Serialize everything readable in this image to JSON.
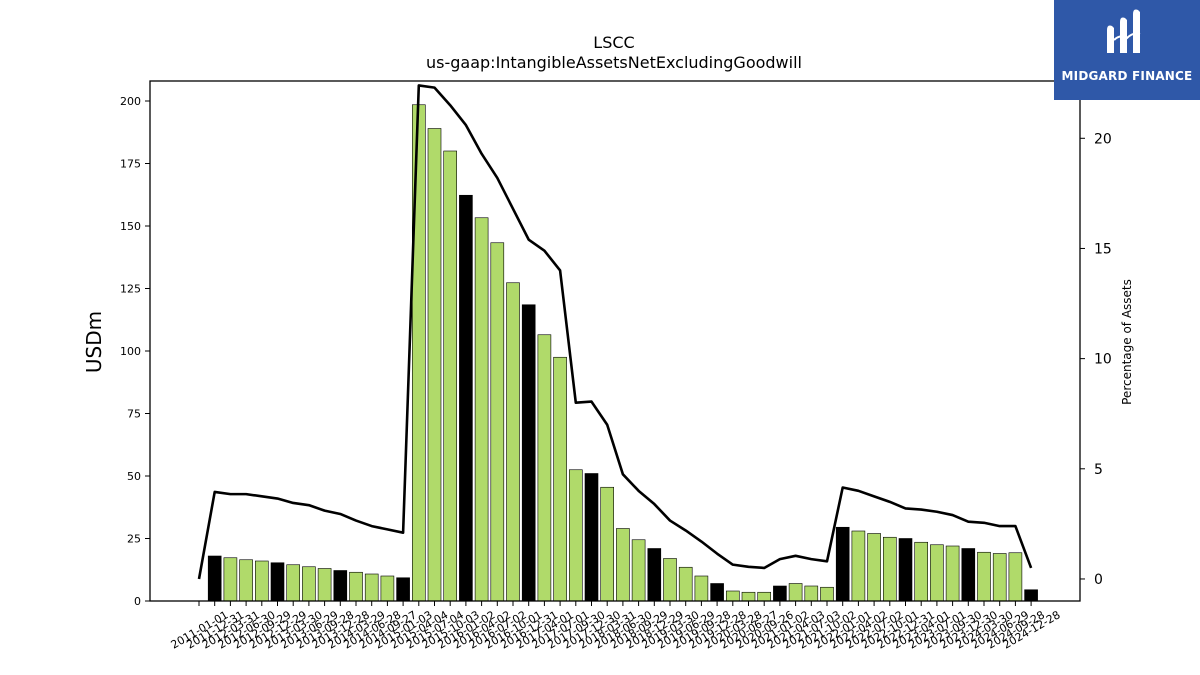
{
  "chart_data": {
    "type": "bar",
    "title": "LSCC",
    "subtitle": "us-gaap:IntangibleAssetsNetExcludingGoodwill",
    "ylabel": "USDm",
    "y2label": "Percentage of Assets",
    "ylim": [
      0,
      208
    ],
    "y2lim": [
      -1,
      22.6
    ],
    "yticks": [
      0,
      25,
      50,
      75,
      100,
      125,
      150,
      175,
      200
    ],
    "y2ticks": [
      0,
      5,
      10,
      15,
      20
    ],
    "bar_color": "#b0da6a",
    "highlight_color": "#000000",
    "line_color": "#000000",
    "categories": [
      "2011-01-01",
      "2011-12-31",
      "2012-03-31",
      "2012-06-30",
      "2012-09-29",
      "2012-12-29",
      "2013-03-30",
      "2013-06-29",
      "2013-09-28",
      "2013-12-28",
      "2014-03-29",
      "2014-06-28",
      "2014-09-27",
      "2015-01-03",
      "2015-04-04",
      "2015-07-04",
      "2015-10-03",
      "2016-01-02",
      "2016-04-02",
      "2016-07-02",
      "2016-10-01",
      "2016-12-31",
      "2017-04-01",
      "2017-07-01",
      "2017-09-30",
      "2017-12-30",
      "2018-03-31",
      "2018-06-30",
      "2018-09-29",
      "2018-12-29",
      "2019-03-30",
      "2019-06-29",
      "2019-09-28",
      "2019-12-28",
      "2020-03-28",
      "2020-06-27",
      "2020-09-26",
      "2021-01-02",
      "2021-04-03",
      "2021-07-03",
      "2021-10-02",
      "2022-01-01",
      "2022-04-02",
      "2022-07-02",
      "2022-10-01",
      "2022-12-31",
      "2023-04-01",
      "2023-07-01",
      "2023-09-30",
      "2023-12-30",
      "2024-03-30",
      "2024-06-29",
      "2024-09-28",
      "2024-12-28"
    ],
    "x_tick_labels": [
      "2011-01-01",
      "2011-12-31",
      "2012-03-31",
      "2012-06-30",
      "2012-09-29",
      "2012-12-29",
      "2013-03-30",
      "2013-06-29",
      "2013-09-28",
      "2013-12-28",
      "2014-03-29",
      "2014-06-28",
      "2014-09-27",
      "2015-01-03",
      "2015-04-04",
      "2015-07-04",
      "2015-10-03",
      "2016-01-02",
      "2016-04-02",
      "2016-07-02",
      "2016-10-01",
      "2016-12-31",
      "2017-04-01",
      "2017-07-01",
      "2017-09-30",
      "2017-12-30",
      "2018-03-31",
      "2018-06-30",
      "2018-09-29",
      "2018-12-29",
      "2019-03-30",
      "2019-06-29",
      "2019-09-28",
      "2019-12-28",
      "2020-03-28",
      "2020-06-27",
      "2020-09-26",
      "2021-01-02",
      "2021-04-03",
      "2021-07-03",
      "2021-10-02",
      "2022-01-01",
      "2022-04-02",
      "2022-07-02",
      "2022-10-01",
      "2022-12-31",
      "2023-04-01",
      "2023-07-01",
      "2023-09-30",
      "2023-12-30",
      "2024-03-30",
      "2024-06-29",
      "2024-09-28",
      "2024-12-28"
    ],
    "values": [
      0,
      18,
      17.3,
      16.5,
      16,
      15.3,
      14.5,
      13.7,
      13,
      12.2,
      11.5,
      10.8,
      10,
      9.3,
      198.5,
      189,
      180,
      162.3,
      153.3,
      143.3,
      127.3,
      118.5,
      106.5,
      97.5,
      52.5,
      51,
      45.5,
      29,
      24.5,
      21,
      17,
      13.5,
      10,
      7,
      4,
      3.5,
      3.5,
      6,
      7,
      6,
      5.5,
      29.5,
      28,
      27,
      25.5,
      25,
      23.5,
      22.5,
      22,
      21,
      19.5,
      19,
      19.3,
      4.5
    ],
    "highlight": [
      false,
      true,
      false,
      false,
      false,
      true,
      false,
      false,
      false,
      true,
      false,
      false,
      false,
      true,
      false,
      false,
      false,
      true,
      false,
      false,
      false,
      true,
      false,
      false,
      false,
      true,
      false,
      false,
      false,
      true,
      false,
      false,
      false,
      true,
      false,
      false,
      false,
      true,
      false,
      false,
      false,
      true,
      false,
      false,
      false,
      true,
      false,
      false,
      false,
      true,
      false,
      false,
      false,
      true
    ],
    "line_series": {
      "name": "Percentage of Assets",
      "values": [
        0,
        3.95,
        3.85,
        3.85,
        3.75,
        3.65,
        3.45,
        3.35,
        3.1,
        2.95,
        2.65,
        2.4,
        2.25,
        2.1,
        22.4,
        22.3,
        21.5,
        20.6,
        19.3,
        18.2,
        16.8,
        15.4,
        14.9,
        14,
        8,
        8.05,
        7,
        4.75,
        4,
        3.4,
        2.65,
        2.2,
        1.7,
        1.15,
        0.65,
        0.55,
        0.5,
        0.9,
        1.05,
        0.9,
        0.8,
        4.15,
        4,
        3.75,
        3.5,
        3.2,
        3.15,
        3.05,
        2.9,
        2.6,
        2.55,
        2.4,
        2.4,
        0.5
      ]
    }
  },
  "logo": {
    "text": "MIDGARD FINANCE"
  }
}
